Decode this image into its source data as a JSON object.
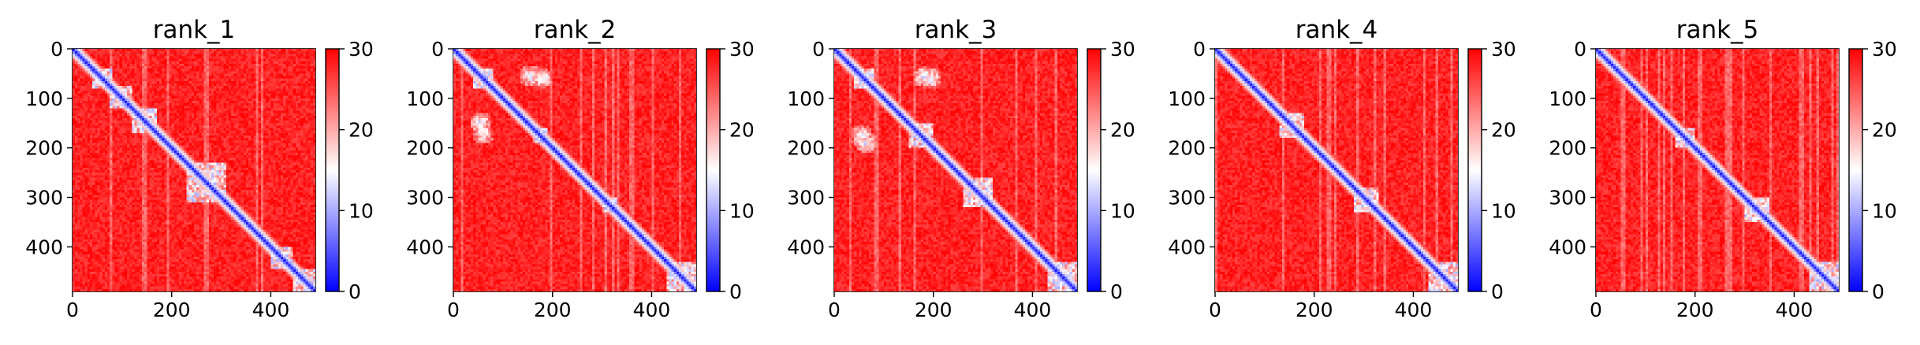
{
  "chart_data": [
    {
      "type": "heatmap",
      "title": "rank_1",
      "x_ticks": [
        "0",
        "200",
        "400"
      ],
      "y_ticks": [
        "0",
        "100",
        "200",
        "300",
        "400"
      ],
      "xlim": [
        0,
        490
      ],
      "ylim": [
        490,
        0
      ],
      "colorbar": {
        "ticks": [
          "0",
          "10",
          "20",
          "30"
        ],
        "range": [
          0,
          30
        ],
        "colors": [
          "#0000ff",
          "#ffffff",
          "#ff0000"
        ]
      },
      "domains": [
        [
          40,
          80
        ],
        [
          75,
          120
        ],
        [
          120,
          170
        ],
        [
          230,
          310
        ],
        [
          400,
          445
        ],
        [
          445,
          490
        ]
      ],
      "contacts": []
    },
    {
      "type": "heatmap",
      "title": "rank_2",
      "x_ticks": [
        "0",
        "200",
        "400"
      ],
      "y_ticks": [
        "0",
        "100",
        "200",
        "300",
        "400"
      ],
      "xlim": [
        0,
        490
      ],
      "ylim": [
        490,
        0
      ],
      "colorbar": {
        "ticks": [
          "0",
          "10",
          "20",
          "30"
        ],
        "range": [
          0,
          30
        ],
        "colors": [
          "#0000ff",
          "#ffffff",
          "#ff0000"
        ]
      },
      "domains": [
        [
          40,
          80
        ],
        [
          160,
          190
        ],
        [
          300,
          330
        ],
        [
          430,
          490
        ]
      ],
      "contacts": [
        [
          55,
          155
        ],
        [
          150,
          55
        ],
        [
          60,
          180
        ],
        [
          170,
          60
        ]
      ]
    },
    {
      "type": "heatmap",
      "title": "rank_3",
      "x_ticks": [
        "0",
        "200",
        "400"
      ],
      "y_ticks": [
        "0",
        "100",
        "200",
        "300",
        "400"
      ],
      "xlim": [
        0,
        490
      ],
      "ylim": [
        490,
        0
      ],
      "colorbar": {
        "ticks": [
          "0",
          "10",
          "20",
          "30"
        ],
        "range": [
          0,
          30
        ],
        "colors": [
          "#0000ff",
          "#ffffff",
          "#ff0000"
        ]
      },
      "domains": [
        [
          40,
          80
        ],
        [
          150,
          200
        ],
        [
          260,
          320
        ],
        [
          430,
          490
        ]
      ],
      "contacts": [
        [
          55,
          180
        ],
        [
          175,
          55
        ],
        [
          60,
          195
        ],
        [
          190,
          65
        ]
      ]
    },
    {
      "type": "heatmap",
      "title": "rank_4",
      "x_ticks": [
        "0",
        "200",
        "400"
      ],
      "y_ticks": [
        "0",
        "100",
        "200",
        "300",
        "400"
      ],
      "xlim": [
        0,
        490
      ],
      "ylim": [
        490,
        0
      ],
      "colorbar": {
        "ticks": [
          "0",
          "10",
          "20",
          "30"
        ],
        "range": [
          0,
          30
        ],
        "colors": [
          "#0000ff",
          "#ffffff",
          "#ff0000"
        ]
      },
      "domains": [
        [
          130,
          180
        ],
        [
          280,
          330
        ],
        [
          430,
          490
        ]
      ],
      "contacts": []
    },
    {
      "type": "heatmap",
      "title": "rank_5",
      "x_ticks": [
        "0",
        "200",
        "400"
      ],
      "y_ticks": [
        "0",
        "100",
        "200",
        "300",
        "400"
      ],
      "xlim": [
        0,
        490
      ],
      "ylim": [
        490,
        0
      ],
      "colorbar": {
        "ticks": [
          "0",
          "10",
          "20",
          "30"
        ],
        "range": [
          0,
          30
        ],
        "colors": [
          "#0000ff",
          "#ffffff",
          "#ff0000"
        ]
      },
      "domains": [
        [
          160,
          200
        ],
        [
          300,
          350
        ],
        [
          430,
          490
        ]
      ],
      "contacts": []
    }
  ]
}
